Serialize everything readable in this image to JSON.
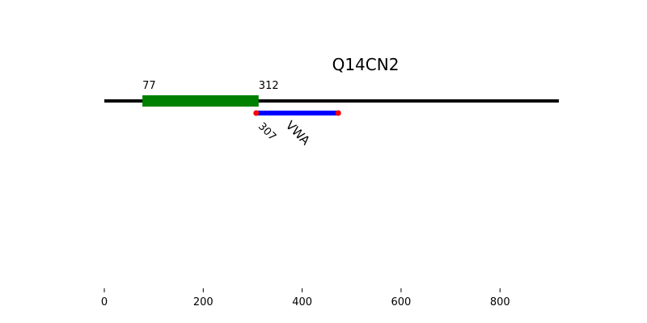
{
  "chart_data": {
    "type": "protein-domain-map",
    "title": "Q14CN2",
    "protein_length": 919,
    "xlim": [
      0,
      919
    ],
    "x_ticks": [
      0,
      200,
      400,
      600,
      800
    ],
    "regions": [
      {
        "start": 77,
        "end": 312,
        "start_label": "77",
        "end_label": "312",
        "color": "#008000"
      }
    ],
    "domains": [
      {
        "name": "VWA",
        "start": 307,
        "end": 473,
        "start_label": "307",
        "color": "#0000ff",
        "endpoint_color": "#ff0000"
      }
    ],
    "grid": false,
    "legend": "none"
  },
  "colors": {
    "backbone": "#000000",
    "text": "#000000"
  }
}
